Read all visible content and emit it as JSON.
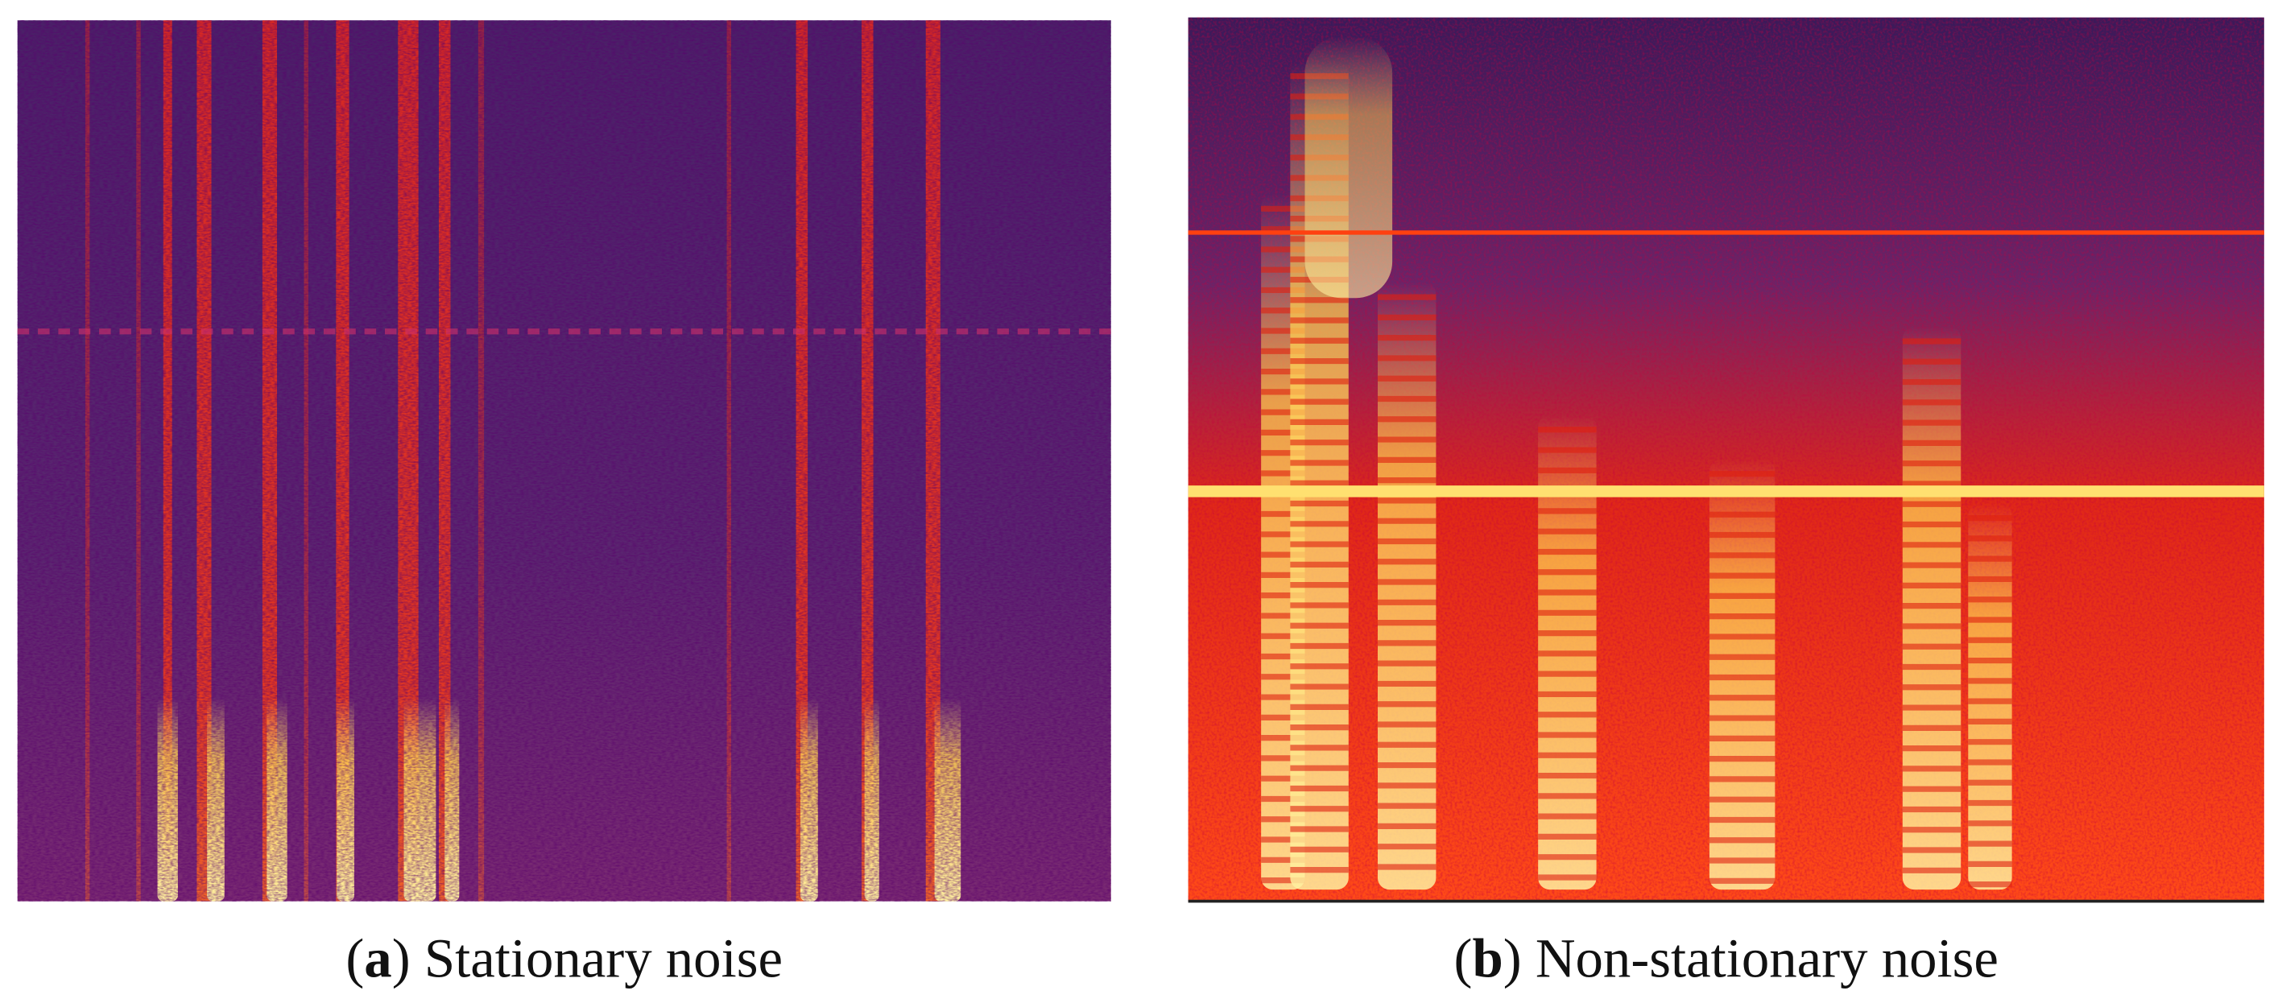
{
  "panels": [
    {
      "label_open": "(",
      "label": "a",
      "label_close": ")",
      "caption": "Stationary noise"
    },
    {
      "label_open": "(",
      "label": "b",
      "label_close": ")",
      "caption": "Non-stationary noise"
    }
  ]
}
